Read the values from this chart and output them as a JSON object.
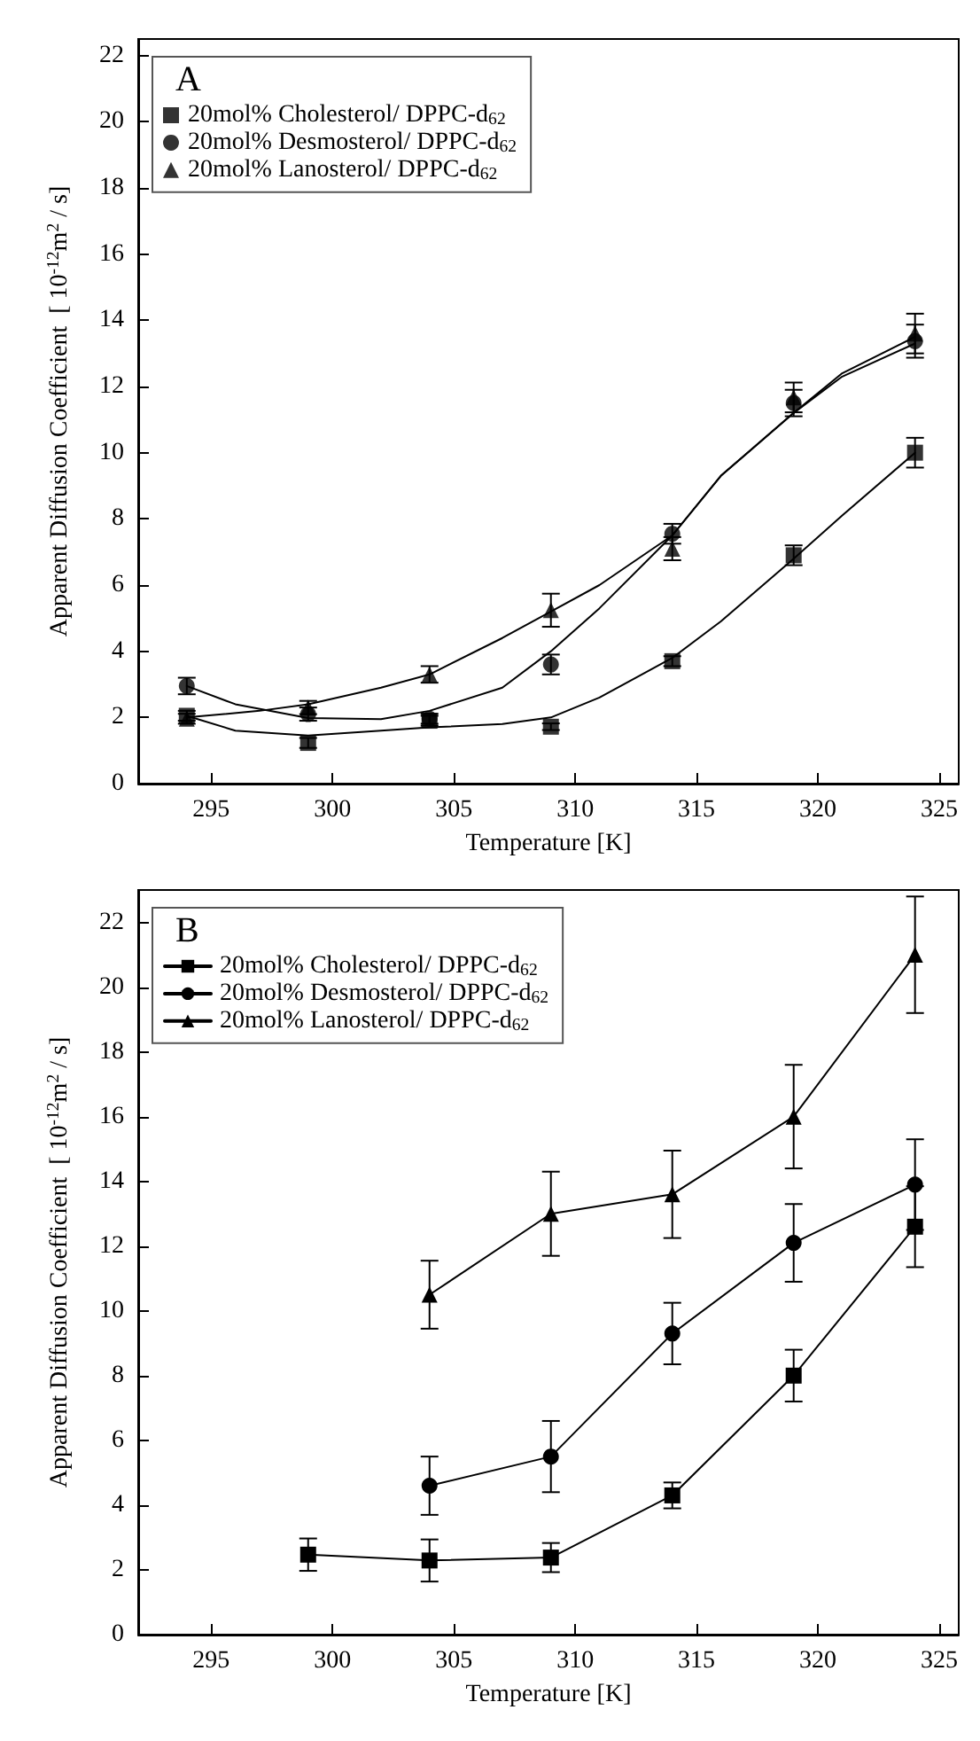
{
  "chart_data": [
    {
      "type": "scatter",
      "title": "A",
      "xlabel": "Temperature [K]",
      "ylabel": "Apparent Diffusion Coefficient  [ 10$^{-12}$m$^{2}$ / s]",
      "xlim": [
        292,
        325.8
      ],
      "xticks": [
        295,
        300,
        305,
        310,
        315,
        320,
        325
      ],
      "ylim": [
        0,
        22.5
      ],
      "yticks": [
        0,
        2,
        4,
        6,
        8,
        10,
        12,
        14,
        16,
        18,
        20,
        22
      ],
      "legend": "top left",
      "grid": false,
      "series": [
        {
          "name": "20mol% Cholesterol/ DPPC-d$_{62}$",
          "marker": "square",
          "color": "#000000",
          "x": [
            294,
            299,
            304,
            309,
            314,
            319,
            324
          ],
          "values": [
            2.05,
            1.23,
            1.9,
            1.72,
            3.7,
            6.9,
            10.0
          ],
          "errors": [
            0.15,
            0.15,
            0.15,
            0.1,
            0.15,
            0.3,
            0.45
          ]
        },
        {
          "name": "20mol% Desmosterol/ DPPC-d$_{62}$",
          "marker": "circle",
          "color": "#000000",
          "x": [
            294,
            299,
            304,
            309,
            314,
            319,
            324
          ],
          "values": [
            2.95,
            2.1,
            1.96,
            3.6,
            7.55,
            11.5,
            13.37
          ],
          "errors": [
            0.25,
            0.2,
            0.15,
            0.3,
            0.3,
            0.4,
            0.5
          ]
        },
        {
          "name": "20mol% Lanosterol/ DPPC-d$_{62}$",
          "marker": "triangle",
          "color": "#000000",
          "x": [
            294,
            299,
            304,
            309,
            314,
            319,
            324
          ],
          "values": [
            1.96,
            2.3,
            3.3,
            5.24,
            7.1,
            11.67,
            13.6
          ],
          "errors": [
            0.15,
            0.2,
            0.25,
            0.5,
            0.35,
            0.45,
            0.6
          ]
        },
        {
          "type": "line",
          "marker": "none",
          "color": "#000000",
          "x": [
            294,
            296,
            299,
            302,
            304,
            307,
            309,
            311,
            314,
            316,
            319,
            321,
            324
          ],
          "values": [
            2.05,
            1.6,
            1.45,
            1.6,
            1.7,
            1.8,
            2.0,
            2.6,
            3.8,
            4.9,
            6.8,
            8.1,
            10.0
          ]
        },
        {
          "type": "line",
          "marker": "none",
          "color": "#000000",
          "x": [
            294,
            296,
            299,
            302,
            304,
            307,
            309,
            311,
            314,
            316,
            319,
            321,
            324
          ],
          "values": [
            2.95,
            2.4,
            1.98,
            1.95,
            2.2,
            2.9,
            4.0,
            5.3,
            7.5,
            9.3,
            11.2,
            12.3,
            13.3
          ]
        },
        {
          "type": "line",
          "marker": "none",
          "color": "#000000",
          "x": [
            294,
            297,
            299,
            302,
            304,
            307,
            309,
            311,
            314,
            316,
            319,
            321,
            324
          ],
          "values": [
            2.0,
            2.2,
            2.4,
            2.9,
            3.3,
            4.4,
            5.2,
            6.0,
            7.5,
            9.3,
            11.2,
            12.4,
            13.5
          ]
        }
      ]
    },
    {
      "type": "line",
      "title": "B",
      "xlabel": "Temperature [K]",
      "ylabel": "Apparent Diffusion Coefficient  [ 10$^{-12}$m$^{2}$ / s]",
      "xlim": [
        292,
        325.8
      ],
      "xticks": [
        295,
        300,
        305,
        310,
        315,
        320,
        325
      ],
      "ylim": [
        0,
        23
      ],
      "yticks": [
        0,
        2,
        4,
        6,
        8,
        10,
        12,
        14,
        16,
        18,
        20,
        22
      ],
      "legend": "top left",
      "grid": false,
      "series": [
        {
          "name": "20mol% Cholesterol/ DPPC-d$_{62}$",
          "marker": "square",
          "color": "#000000",
          "x": [
            299,
            304,
            309,
            314,
            319,
            324
          ],
          "values": [
            2.47,
            2.29,
            2.38,
            4.3,
            8.0,
            12.6
          ],
          "errors": [
            0.5,
            0.65,
            0.45,
            0.4,
            0.8,
            1.25
          ]
        },
        {
          "name": "20mol% Desmosterol/ DPPC-d$_{62}$",
          "marker": "circle",
          "color": "#000000",
          "x": [
            304,
            309,
            314,
            319,
            324
          ],
          "values": [
            4.6,
            5.5,
            9.3,
            12.1,
            13.9
          ],
          "errors": [
            0.9,
            1.1,
            0.95,
            1.2,
            1.4
          ]
        },
        {
          "name": "20mol% Lanosterol/ DPPC-d$_{62}$",
          "marker": "triangle",
          "color": "#000000",
          "x": [
            304,
            309,
            314,
            319,
            324
          ],
          "values": [
            10.5,
            13.0,
            13.6,
            16.0,
            21.0
          ],
          "errors": [
            1.05,
            1.3,
            1.35,
            1.6,
            1.8
          ]
        }
      ]
    }
  ]
}
